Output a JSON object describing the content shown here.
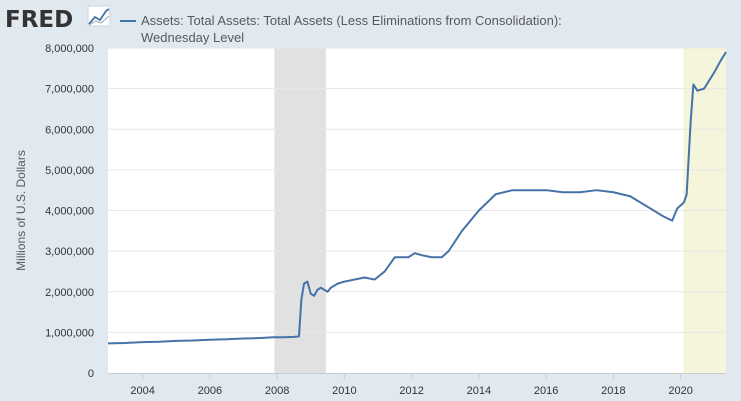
{
  "logo": {
    "text": "FRED",
    "icon": "line-chart-icon"
  },
  "colors": {
    "page_bg": "#e1e9f0",
    "plot_bg": "#ffffff",
    "series": "#4572a7",
    "recession_2008": "#e1e1e1",
    "recession_2020": "#f5f5dc",
    "grid": "#e6e6e6"
  },
  "chart_data": {
    "type": "line",
    "title": "",
    "xlabel": "",
    "ylabel": "Millions of U.S. Dollars",
    "xlim": [
      2002.97,
      2021.35
    ],
    "ylim": [
      0,
      8000000
    ],
    "grid": true,
    "x_ticks": [
      {
        "value": 2004,
        "label": "2004"
      },
      {
        "value": 2006,
        "label": "2006"
      },
      {
        "value": 2008,
        "label": "2008"
      },
      {
        "value": 2010,
        "label": "2010"
      },
      {
        "value": 2012,
        "label": "2012"
      },
      {
        "value": 2014,
        "label": "2014"
      },
      {
        "value": 2016,
        "label": "2016"
      },
      {
        "value": 2018,
        "label": "2018"
      },
      {
        "value": 2020,
        "label": "2020"
      }
    ],
    "y_ticks": [
      {
        "value": 0,
        "label": "0"
      },
      {
        "value": 1000000,
        "label": "1,000,000"
      },
      {
        "value": 2000000,
        "label": "2,000,000"
      },
      {
        "value": 3000000,
        "label": "3,000,000"
      },
      {
        "value": 4000000,
        "label": "4,000,000"
      },
      {
        "value": 5000000,
        "label": "5,000,000"
      },
      {
        "value": 6000000,
        "label": "6,000,000"
      },
      {
        "value": 7000000,
        "label": "7,000,000"
      },
      {
        "value": 8000000,
        "label": "8,000,000"
      }
    ],
    "recessions": [
      {
        "start": 2007.92,
        "end": 2009.45
      },
      {
        "start": 2020.08,
        "end": 2021.35
      }
    ],
    "legend": {
      "placement": "top",
      "lines": [
        "Assets: Total Assets: Total Assets (Less Eliminations from Consolidation):",
        "Wednesday Level"
      ]
    },
    "series": [
      {
        "name": "Assets: Total Assets: Total Assets (Less Eliminations from Consolidation): Wednesday Level",
        "x": [
          2002.97,
          2003.5,
          2004.0,
          2004.5,
          2005.0,
          2005.5,
          2006.0,
          2006.5,
          2007.0,
          2007.5,
          2007.9,
          2008.2,
          2008.5,
          2008.65,
          2008.72,
          2008.8,
          2008.9,
          2009.0,
          2009.1,
          2009.2,
          2009.3,
          2009.4,
          2009.5,
          2009.6,
          2009.7,
          2009.8,
          2010.0,
          2010.3,
          2010.6,
          2010.9,
          2011.2,
          2011.5,
          2011.7,
          2011.9,
          2012.0,
          2012.1,
          2012.3,
          2012.6,
          2012.9,
          2013.1,
          2013.5,
          2014.0,
          2014.5,
          2015.0,
          2015.5,
          2016.0,
          2016.5,
          2017.0,
          2017.5,
          2018.0,
          2018.5,
          2019.0,
          2019.5,
          2019.75,
          2019.9,
          2020.1,
          2020.18,
          2020.24,
          2020.3,
          2020.38,
          2020.5,
          2020.7,
          2021.0,
          2021.2,
          2021.35
        ],
        "values": [
          730000,
          740000,
          760000,
          770000,
          790000,
          800000,
          820000,
          830000,
          850000,
          860000,
          880000,
          880000,
          890000,
          900000,
          1800000,
          2200000,
          2250000,
          1950000,
          1900000,
          2050000,
          2100000,
          2050000,
          2000000,
          2100000,
          2150000,
          2200000,
          2250000,
          2300000,
          2350000,
          2300000,
          2500000,
          2850000,
          2850000,
          2850000,
          2900000,
          2950000,
          2900000,
          2850000,
          2850000,
          3000000,
          3500000,
          4000000,
          4400000,
          4500000,
          4500000,
          4500000,
          4450000,
          4450000,
          4500000,
          4450000,
          4350000,
          4100000,
          3850000,
          3750000,
          4050000,
          4200000,
          4400000,
          5300000,
          6200000,
          7100000,
          6950000,
          7000000,
          7400000,
          7700000,
          7900000
        ]
      }
    ]
  }
}
